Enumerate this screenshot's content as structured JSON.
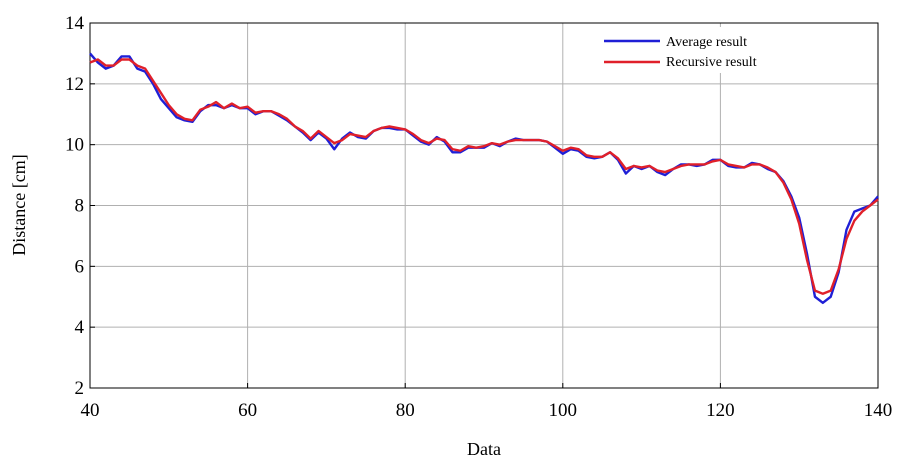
{
  "chart_data": {
    "type": "line",
    "title": "",
    "xlabel": "Data",
    "ylabel": "Distance [cm]",
    "xlim": [
      40,
      140
    ],
    "ylim": [
      2,
      14
    ],
    "xticks": [
      40,
      60,
      80,
      100,
      120,
      140
    ],
    "yticks": [
      2,
      4,
      6,
      8,
      10,
      12,
      14
    ],
    "grid": true,
    "legend_position": "top-right",
    "series": [
      {
        "name": "Average result",
        "color": "#1f1fd6",
        "x": [
          40,
          41,
          42,
          43,
          44,
          45,
          46,
          47,
          48,
          49,
          50,
          51,
          52,
          53,
          54,
          55,
          56,
          57,
          58,
          59,
          60,
          61,
          62,
          63,
          64,
          65,
          66,
          67,
          68,
          69,
          70,
          71,
          72,
          73,
          74,
          75,
          76,
          77,
          78,
          79,
          80,
          81,
          82,
          83,
          84,
          85,
          86,
          87,
          88,
          89,
          90,
          91,
          92,
          93,
          94,
          95,
          96,
          97,
          98,
          99,
          100,
          101,
          102,
          103,
          104,
          105,
          106,
          107,
          108,
          109,
          110,
          111,
          112,
          113,
          114,
          115,
          116,
          117,
          118,
          119,
          120,
          121,
          122,
          123,
          124,
          125,
          126,
          127,
          128,
          129,
          130,
          131,
          132,
          133,
          134,
          135,
          136,
          137,
          138,
          139,
          140
        ],
        "y": [
          13.0,
          12.7,
          12.5,
          12.6,
          12.9,
          12.9,
          12.5,
          12.4,
          12.0,
          11.5,
          11.2,
          10.9,
          10.8,
          10.75,
          11.1,
          11.3,
          11.3,
          11.2,
          11.3,
          11.2,
          11.2,
          11.0,
          11.1,
          11.1,
          10.95,
          10.8,
          10.6,
          10.4,
          10.15,
          10.4,
          10.2,
          9.85,
          10.2,
          10.4,
          10.25,
          10.2,
          10.45,
          10.55,
          10.55,
          10.5,
          10.5,
          10.3,
          10.1,
          10.0,
          10.25,
          10.1,
          9.75,
          9.75,
          9.9,
          9.9,
          9.9,
          10.05,
          9.95,
          10.1,
          10.2,
          10.15,
          10.15,
          10.15,
          10.1,
          9.9,
          9.7,
          9.85,
          9.8,
          9.6,
          9.55,
          9.6,
          9.75,
          9.5,
          9.05,
          9.3,
          9.2,
          9.3,
          9.1,
          9.0,
          9.2,
          9.35,
          9.35,
          9.3,
          9.35,
          9.5,
          9.5,
          9.3,
          9.25,
          9.25,
          9.4,
          9.35,
          9.2,
          9.1,
          8.8,
          8.3,
          7.6,
          6.4,
          5.0,
          4.8,
          5.0,
          5.8,
          7.2,
          7.8,
          7.9,
          8.0,
          8.3
        ]
      },
      {
        "name": "Recursive result",
        "color": "#e0202a",
        "x": [
          40,
          41,
          42,
          43,
          44,
          45,
          46,
          47,
          48,
          49,
          50,
          51,
          52,
          53,
          54,
          55,
          56,
          57,
          58,
          59,
          60,
          61,
          62,
          63,
          64,
          65,
          66,
          67,
          68,
          69,
          70,
          71,
          72,
          73,
          74,
          75,
          76,
          77,
          78,
          79,
          80,
          81,
          82,
          83,
          84,
          85,
          86,
          87,
          88,
          89,
          90,
          91,
          92,
          93,
          94,
          95,
          96,
          97,
          98,
          99,
          100,
          101,
          102,
          103,
          104,
          105,
          106,
          107,
          108,
          109,
          110,
          111,
          112,
          113,
          114,
          115,
          116,
          117,
          118,
          119,
          120,
          121,
          122,
          123,
          124,
          125,
          126,
          127,
          128,
          129,
          130,
          131,
          132,
          133,
          134,
          135,
          136,
          137,
          138,
          139,
          140
        ],
        "y": [
          12.7,
          12.8,
          12.6,
          12.6,
          12.8,
          12.8,
          12.6,
          12.5,
          12.1,
          11.7,
          11.3,
          11.0,
          10.85,
          10.8,
          11.15,
          11.25,
          11.4,
          11.2,
          11.35,
          11.2,
          11.25,
          11.05,
          11.1,
          11.1,
          11.0,
          10.85,
          10.6,
          10.45,
          10.2,
          10.45,
          10.25,
          10.05,
          10.15,
          10.35,
          10.3,
          10.25,
          10.45,
          10.55,
          10.6,
          10.55,
          10.5,
          10.35,
          10.15,
          10.05,
          10.2,
          10.15,
          9.85,
          9.8,
          9.95,
          9.9,
          9.95,
          10.05,
          10.0,
          10.1,
          10.15,
          10.15,
          10.15,
          10.15,
          10.1,
          9.95,
          9.8,
          9.9,
          9.85,
          9.65,
          9.6,
          9.6,
          9.75,
          9.55,
          9.2,
          9.3,
          9.25,
          9.3,
          9.15,
          9.1,
          9.2,
          9.3,
          9.35,
          9.35,
          9.35,
          9.45,
          9.5,
          9.35,
          9.3,
          9.25,
          9.35,
          9.35,
          9.25,
          9.1,
          8.75,
          8.2,
          7.4,
          6.2,
          5.2,
          5.1,
          5.2,
          5.9,
          6.9,
          7.5,
          7.8,
          8.0,
          8.2
        ]
      }
    ]
  }
}
